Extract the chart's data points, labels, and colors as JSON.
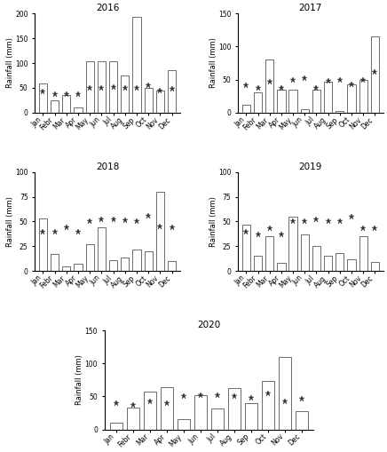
{
  "months": [
    "Jan",
    "Febr",
    "Mar",
    "Apr",
    "May",
    "Jun",
    "Jul",
    "Aug",
    "Sep",
    "Oct",
    "Nov",
    "Dec"
  ],
  "years": [
    "2016",
    "2017",
    "2018",
    "2019",
    "2020"
  ],
  "rainfall": {
    "2016": [
      58,
      25,
      35,
      10,
      103,
      103,
      103,
      75,
      193,
      50,
      45,
      85
    ],
    "2017": [
      12,
      31,
      80,
      35,
      35,
      5,
      35,
      47,
      2,
      43,
      50,
      115
    ],
    "2018": [
      53,
      17,
      5,
      7,
      27,
      44,
      11,
      14,
      22,
      20,
      80,
      10
    ],
    "2019": [
      47,
      15,
      35,
      8,
      55,
      37,
      25,
      15,
      18,
      12,
      35,
      9
    ],
    "2020": [
      10,
      33,
      57,
      64,
      15,
      52,
      32,
      62,
      40,
      73,
      110,
      27
    ]
  },
  "mean": {
    "2016": [
      42,
      37,
      37,
      37,
      50,
      50,
      52,
      50,
      50,
      55,
      45,
      48
    ],
    "2017": [
      42,
      37,
      47,
      37,
      50,
      52,
      37,
      48,
      50,
      43,
      50,
      62
    ],
    "2018": [
      40,
      40,
      44,
      40,
      50,
      52,
      52,
      51,
      50,
      56,
      45,
      44
    ],
    "2019": [
      40,
      37,
      43,
      37,
      50,
      50,
      52,
      50,
      50,
      55,
      43,
      43
    ],
    "2020": [
      40,
      37,
      43,
      40,
      50,
      52,
      52,
      50,
      48,
      55,
      43,
      46
    ]
  },
  "ylims": {
    "2016": [
      0,
      200
    ],
    "2017": [
      0,
      150
    ],
    "2018": [
      0,
      100
    ],
    "2019": [
      0,
      100
    ],
    "2020": [
      0,
      150
    ]
  },
  "yticks": {
    "2016": [
      0,
      50,
      100,
      150,
      200
    ],
    "2017": [
      0,
      50,
      100,
      150
    ],
    "2018": [
      0,
      25,
      50,
      75,
      100
    ],
    "2019": [
      0,
      25,
      50,
      75,
      100
    ],
    "2020": [
      0,
      50,
      100,
      150
    ]
  },
  "bar_color": "white",
  "bar_edgecolor": "#333333",
  "star_color": "#333333",
  "title_fontsize": 7.5,
  "ylabel_fontsize": 6,
  "tick_fontsize": 5.5,
  "star_size": 4.5,
  "bar_linewidth": 0.5
}
